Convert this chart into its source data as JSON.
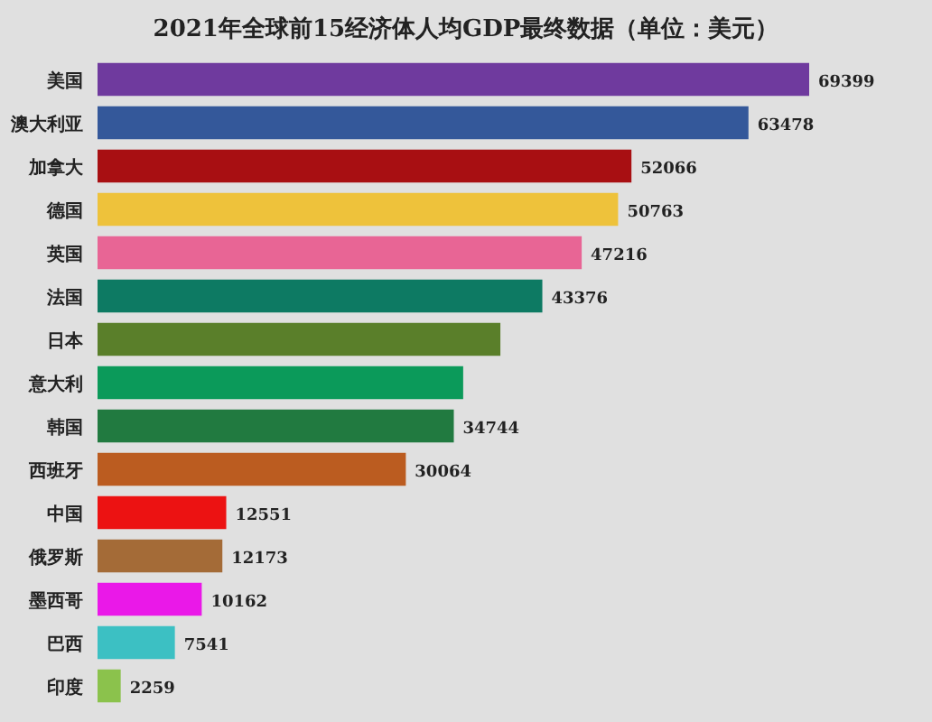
{
  "chart_data": {
    "type": "bar",
    "orientation": "horizontal",
    "title": "2021年全球前15经济体人均GDP最终数据（单位：美元）",
    "categories": [
      "美国",
      "澳大利亚",
      "加拿大",
      "德国",
      "英国",
      "法国",
      "日本",
      "意大利",
      "韩国",
      "西班牙",
      "中国",
      "俄罗斯",
      "墨西哥",
      "巴西",
      "印度"
    ],
    "values": [
      69399,
      63478,
      52066,
      50763,
      47216,
      43376,
      39285,
      35657,
      34744,
      30064,
      12551,
      12173,
      10162,
      7541,
      2259
    ],
    "value_labels": [
      "69399",
      "63478",
      "52066",
      "50763",
      "47216",
      "43376",
      null,
      null,
      "34744",
      "30064",
      "12551",
      "12173",
      "10162",
      "7541",
      "2259"
    ],
    "colors": [
      "#6f3a9e",
      "#34589a",
      "#a80f12",
      "#eec23b",
      "#e86595",
      "#0d7a63",
      "#5a7f2a",
      "#0b9a5a",
      "#217a40",
      "#bb5c20",
      "#ec1212",
      "#a46b37",
      "#ea18e8",
      "#3cc0c3",
      "#8bc24c"
    ]
  }
}
